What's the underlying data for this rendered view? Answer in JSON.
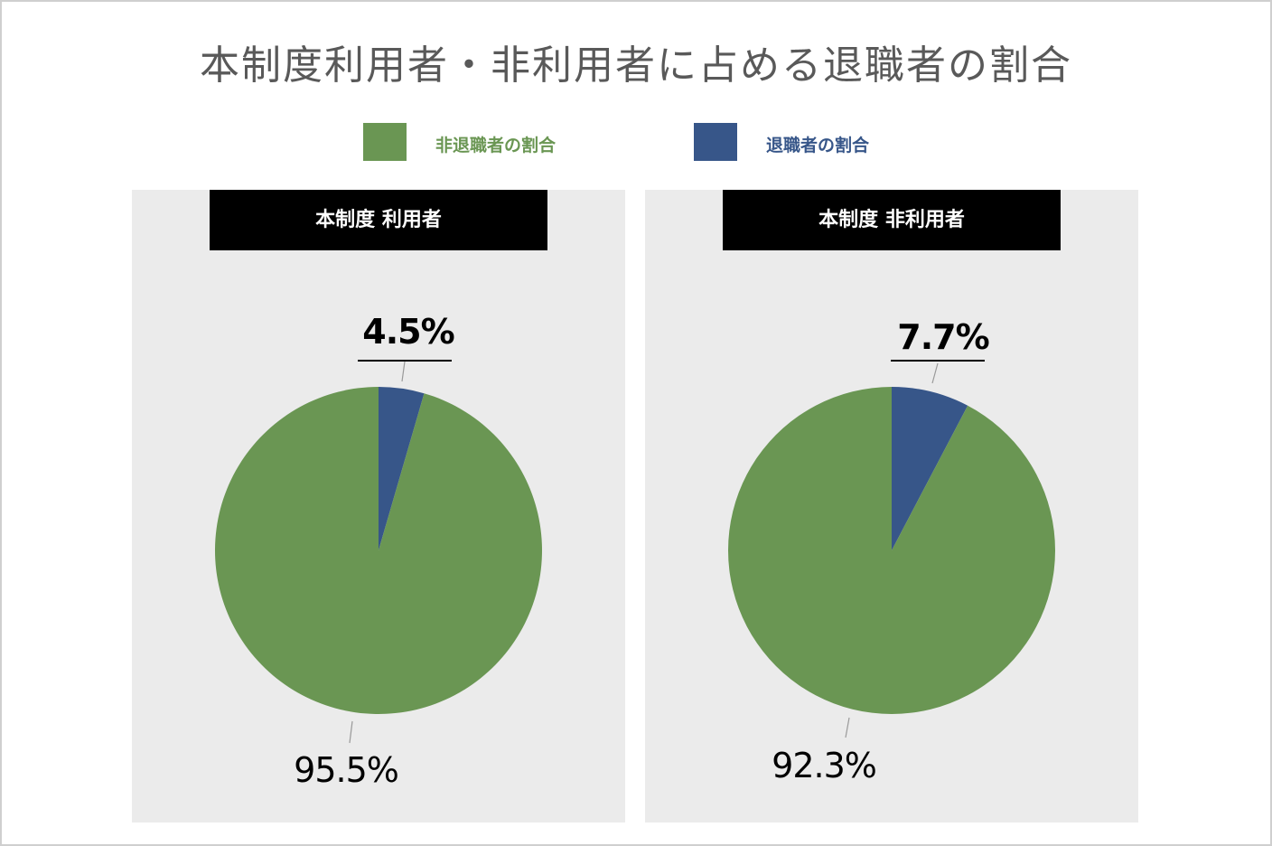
{
  "title": "本制度利用者・非利用者に占める退職者の割合",
  "legend": [
    {
      "label": "非退職者の割合",
      "color": "#6a9653"
    },
    {
      "label": "退職者の割合",
      "color": "#375689"
    }
  ],
  "chart_data": [
    {
      "type": "pie",
      "title": "本制度 利用者",
      "series": [
        {
          "name": "非退職者の割合",
          "value": 95.5,
          "label": "95.5%",
          "color": "#6a9653"
        },
        {
          "name": "退職者の割合",
          "value": 4.5,
          "label": "4.5%",
          "color": "#375689"
        }
      ]
    },
    {
      "type": "pie",
      "title": "本制度 非利用者",
      "series": [
        {
          "name": "非退職者の割合",
          "value": 92.3,
          "label": "92.3%",
          "color": "#6a9653"
        },
        {
          "name": "退職者の割合",
          "value": 7.7,
          "label": "7.7%",
          "color": "#375689"
        }
      ]
    }
  ]
}
